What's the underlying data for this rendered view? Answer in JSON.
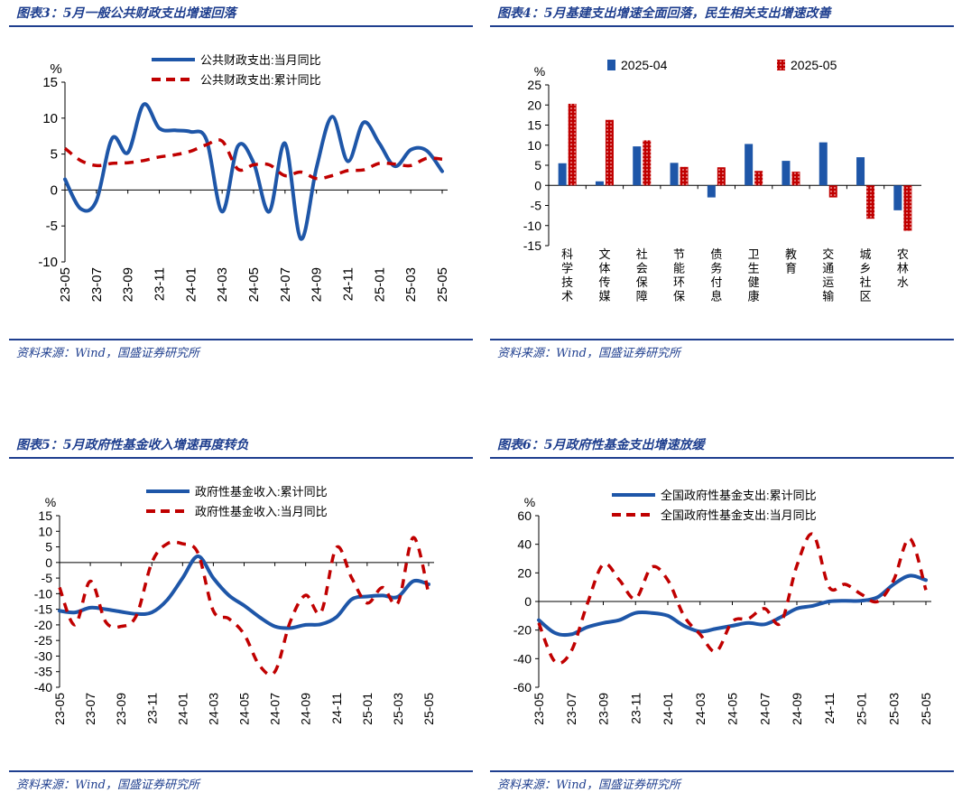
{
  "source_label": "资料来源：Wind，国盛证券研究所",
  "unit_label": "%",
  "colors": {
    "blue": "#1e56a8",
    "red": "#c00000",
    "title": "#1f3f8f"
  },
  "chart_data": [
    {
      "title": "图表3：5月一般公共财政支出增速回落",
      "type": "line",
      "ylabel": "%",
      "ylim": [
        -10,
        15
      ],
      "yticks": [
        -10,
        -5,
        0,
        5,
        10,
        15
      ],
      "x_ticks": [
        "23-05",
        "23-07",
        "23-09",
        "23-11",
        "24-01",
        "24-03",
        "24-05",
        "24-07",
        "24-09",
        "24-11",
        "25-01",
        "25-03",
        "25-05"
      ],
      "series": [
        {
          "name": "公共财政支出:当月同比",
          "style": "solid",
          "color": "#1e56a8",
          "values": [
            1.5,
            -2.6,
            -1.5,
            7.2,
            5.2,
            11.9,
            8.6,
            8.3,
            8.1,
            7.0,
            -3.0,
            6.1,
            3.8,
            -3.0,
            6.5,
            -6.8,
            3.1,
            10.2,
            4.0,
            9.4,
            6.5,
            3.3,
            5.6,
            5.5,
            2.6
          ]
        },
        {
          "name": "公共财政支出:累计同比",
          "style": "dashed",
          "color": "#c00000",
          "values": [
            5.8,
            4.1,
            3.4,
            3.7,
            3.8,
            4.1,
            4.6,
            4.9,
            5.4,
            6.3,
            6.8,
            2.9,
            3.5,
            3.5,
            2.0,
            2.5,
            1.6,
            2.0,
            2.7,
            2.8,
            3.7,
            3.6,
            3.4,
            4.4,
            4.3
          ]
        }
      ]
    },
    {
      "title": "图表4：5月基建支出增速全面回落，民生相关支出增速改善",
      "type": "bar",
      "ylabel": "%",
      "ylim": [
        -15,
        25
      ],
      "yticks": [
        -15,
        -10,
        -5,
        0,
        5,
        10,
        15,
        20,
        25
      ],
      "categories": [
        "科学技术",
        "文体传媒",
        "社会保障",
        "节能环保",
        "债务付息",
        "卫生健康",
        "教育",
        "交通运输",
        "城乡社区",
        "农林水"
      ],
      "series": [
        {
          "name": "2025-04",
          "color": "#1e56a8",
          "values": [
            5.5,
            1.0,
            9.7,
            5.6,
            -3.0,
            10.3,
            6.1,
            10.7,
            7.0,
            -6.2
          ]
        },
        {
          "name": "2025-05",
          "color": "#c00000",
          "values": [
            20.3,
            16.3,
            11.2,
            4.6,
            4.5,
            3.6,
            3.4,
            -3.0,
            -8.3,
            -11.3
          ]
        }
      ]
    },
    {
      "title": "图表5：5月政府性基金收入增速再度转负",
      "type": "line",
      "ylabel": "%",
      "ylim": [
        -40,
        15
      ],
      "yticks": [
        -40,
        -35,
        -30,
        -25,
        -20,
        -15,
        -10,
        -5,
        0,
        5,
        10,
        15
      ],
      "x_ticks": [
        "23-05",
        "23-07",
        "23-09",
        "23-11",
        "24-01",
        "24-03",
        "24-05",
        "24-07",
        "24-09",
        "24-11",
        "25-01",
        "25-03",
        "25-05"
      ],
      "series": [
        {
          "name": "政府性基金收入:累计同比",
          "style": "solid",
          "color": "#1e56a8",
          "values": [
            -15.5,
            -16.0,
            -14.5,
            -15.0,
            -15.8,
            -16.5,
            -16.0,
            -12.0,
            -5.0,
            2.0,
            -5.0,
            -10.5,
            -13.8,
            -17.5,
            -20.5,
            -21.0,
            -20.0,
            -19.8,
            -17.5,
            -11.8,
            -10.9,
            -10.6,
            -11.0,
            -6.0,
            -7.0
          ]
        },
        {
          "name": "政府性基金收入:当月同比",
          "style": "dashed",
          "color": "#c00000",
          "values": [
            -8.0,
            -20.0,
            -6.0,
            -19.0,
            -20.5,
            -17.0,
            0.0,
            6.0,
            6.0,
            3.0,
            -15.5,
            -18.0,
            -23.0,
            -33.0,
            -35.0,
            -19.0,
            -10.5,
            -16.0,
            4.8,
            -5.0,
            -13.0,
            -8.0,
            -13.0,
            8.0,
            -10.0
          ]
        }
      ]
    },
    {
      "title": "图表6：5月政府性基金支出增速放缓",
      "type": "line",
      "ylabel": "%",
      "ylim": [
        -60,
        60
      ],
      "yticks": [
        -60,
        -40,
        -20,
        0,
        20,
        40,
        60
      ],
      "x_ticks": [
        "23-05",
        "23-07",
        "23-09",
        "23-11",
        "24-01",
        "24-03",
        "24-05",
        "24-07",
        "24-09",
        "24-11",
        "25-01",
        "25-03",
        "25-05"
      ],
      "series": [
        {
          "name": "全国政府性基金支出:累计同比",
          "style": "solid",
          "color": "#1e56a8",
          "values": [
            -13.0,
            -22.0,
            -23.0,
            -18.0,
            -15.0,
            -13.0,
            -8.0,
            -8.0,
            -10.0,
            -17.0,
            -21.0,
            -19.0,
            -17.0,
            -15.0,
            -16.0,
            -11.0,
            -5.0,
            -3.0,
            0.0,
            0.5,
            0.5,
            3.0,
            12.0,
            18.0,
            15.0
          ]
        },
        {
          "name": "全国政府性基金支出:当月同比",
          "style": "dashed",
          "color": "#c00000",
          "values": [
            -15.0,
            -42.0,
            -35.0,
            -2.0,
            26.0,
            15.0,
            2.0,
            24.0,
            15.0,
            -10.0,
            -23.0,
            -35.0,
            -14.0,
            -12.0,
            -5.0,
            -15.0,
            25.0,
            47.0,
            10.0,
            12.0,
            5.0,
            0.0,
            15.0,
            44.0,
            8.0
          ]
        }
      ]
    }
  ]
}
